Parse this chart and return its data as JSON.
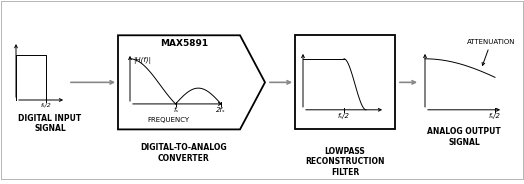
{
  "title": "MAX5891",
  "labels": {
    "block1": "DIGITAL INPUT\nSIGNAL",
    "block2": "DIGITAL-TO-ANALOG\nCONVERTER",
    "block3": "LOWPASS\nRECONSTRUCTION\nFILTER",
    "block4": "ANALOG OUTPUT\nSIGNAL"
  },
  "freq_labels": {
    "dac_fs": "fₛ",
    "dac_2fs": "2fₛ",
    "dac_freq": "FREQUENCY",
    "dac_hf": "|H(f)|",
    "lpf_fs2": "fₛ/2",
    "in_fs2": "fₛ/2",
    "out_fs2": "fₛ/2",
    "attenuation": "ATTENUATION"
  },
  "layout": {
    "fig_w": 5.24,
    "fig_h": 1.84,
    "dpi": 100
  }
}
